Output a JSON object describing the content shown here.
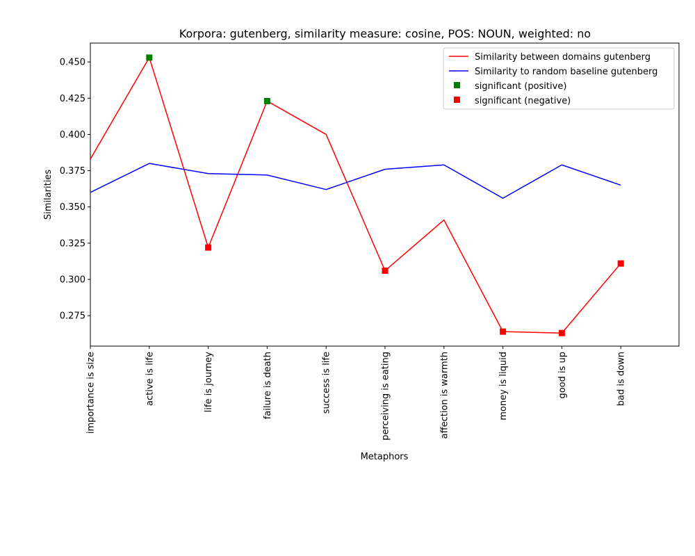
{
  "chart_data": {
    "type": "line",
    "title": "Korpora: gutenberg, similarity measure: cosine, POS: NOUN, weighted: no",
    "xlabel": "Metaphors",
    "ylabel": "Similarities",
    "categories": [
      "importance is size",
      "active is life",
      "life is journey",
      "failure is death",
      "success is life",
      "perceiving is eating",
      "affection is warmth",
      "money is liquid",
      "good is up",
      "bad is down"
    ],
    "ylim": [
      0.254,
      0.463
    ],
    "y_ticks": [
      "0.275",
      "0.300",
      "0.325",
      "0.350",
      "0.375",
      "0.400",
      "0.425",
      "0.450"
    ],
    "grid": false,
    "legend_position": "top-right",
    "series": [
      {
        "name": "Similarity between domains gutenberg",
        "color": "#ff0000",
        "values": [
          0.383,
          0.453,
          0.322,
          0.423,
          0.4,
          0.306,
          0.341,
          0.264,
          0.263,
          0.311
        ]
      },
      {
        "name": "Similarity to random baseline gutenberg",
        "color": "#0000ff",
        "values": [
          0.36,
          0.38,
          0.373,
          0.372,
          0.362,
          0.376,
          0.379,
          0.356,
          0.379,
          0.365
        ]
      }
    ],
    "significance": [
      {
        "name": "significant (positive)",
        "color": "#008000",
        "indices": [
          1,
          3
        ]
      },
      {
        "name": "significant (negative)",
        "color": "#ff0000",
        "indices": [
          2,
          5,
          7,
          8,
          9
        ]
      }
    ]
  }
}
